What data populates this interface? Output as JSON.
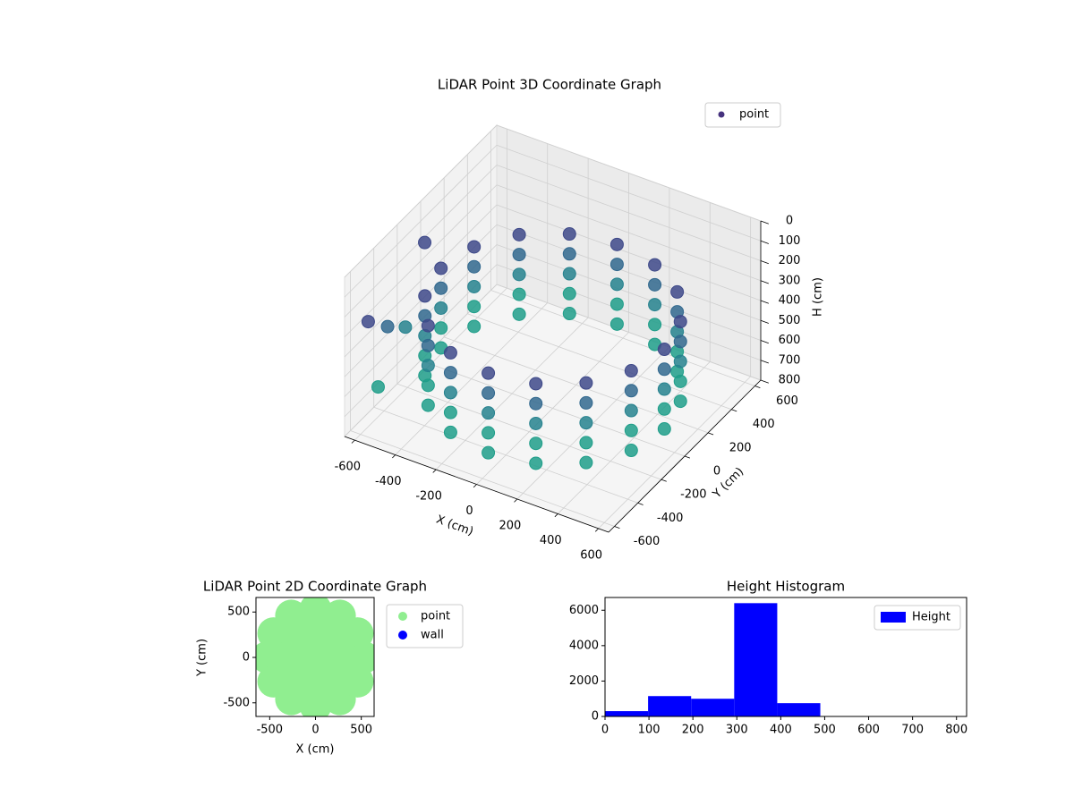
{
  "chart_data": [
    {
      "type": "scatter3d",
      "title": "LiDAR Point 3D Coordinate Graph",
      "xlabel": "X (cm)",
      "ylabel": "Y (cm)",
      "zlabel": "H (cm)",
      "colormap": "viridis",
      "legend": "upper right",
      "xlim": [
        -650,
        650
      ],
      "ylim": [
        -650,
        650
      ],
      "zlim": [
        0,
        800
      ],
      "z_inverted": true,
      "xticks": [
        -600,
        -400,
        -200,
        0,
        200,
        400,
        600
      ],
      "yticks": [
        -600,
        -400,
        -200,
        0,
        200,
        400,
        600
      ],
      "zticks": [
        0,
        100,
        200,
        300,
        400,
        500,
        600,
        700,
        800
      ],
      "series": [
        {
          "name": "point",
          "color": "#46327e",
          "x": [
            550,
            508,
            389,
            210,
            0,
            -210,
            -389,
            -508,
            -550,
            -508,
            -389,
            -210,
            0,
            210,
            389,
            508,
            550,
            508,
            389,
            210,
            0,
            -210,
            -389,
            -508,
            -550,
            -508,
            -389,
            -210,
            0,
            210,
            389,
            508,
            550,
            508,
            389,
            210,
            0,
            -210,
            -389,
            -508,
            -550,
            -508,
            -389,
            -210,
            0,
            210,
            389,
            508,
            550,
            508,
            389,
            210,
            0,
            -210,
            -389,
            -508,
            -550,
            -508,
            -389,
            -210,
            0,
            210,
            389,
            508,
            550,
            508,
            389,
            210,
            0,
            -210,
            -389,
            -508,
            -550,
            -508,
            -389,
            -210,
            0,
            210,
            389,
            508,
            -620,
            -640,
            -600,
            -630,
            -610
          ],
          "y": [
            0,
            210,
            389,
            508,
            550,
            508,
            389,
            210,
            0,
            -210,
            -389,
            -508,
            -550,
            -508,
            -389,
            -210,
            0,
            210,
            389,
            508,
            550,
            508,
            389,
            210,
            0,
            -210,
            -389,
            -508,
            -550,
            -508,
            -389,
            -210,
            0,
            210,
            389,
            508,
            550,
            508,
            389,
            210,
            0,
            -210,
            -389,
            -508,
            -550,
            -508,
            -389,
            -210,
            0,
            210,
            389,
            508,
            550,
            508,
            389,
            210,
            0,
            -210,
            -389,
            -508,
            -550,
            -508,
            -389,
            -210,
            0,
            210,
            389,
            508,
            550,
            508,
            389,
            210,
            0,
            -210,
            -389,
            -508,
            -550,
            -508,
            -389,
            -210,
            -500,
            -300,
            -450,
            0,
            -200
          ],
          "z": [
            300,
            300,
            300,
            300,
            300,
            300,
            300,
            300,
            300,
            300,
            300,
            300,
            300,
            300,
            300,
            300,
            400,
            400,
            400,
            400,
            400,
            400,
            400,
            400,
            400,
            400,
            400,
            400,
            400,
            400,
            400,
            400,
            500,
            500,
            500,
            500,
            500,
            500,
            500,
            500,
            500,
            500,
            500,
            500,
            500,
            500,
            500,
            500,
            600,
            600,
            600,
            600,
            600,
            600,
            600,
            600,
            600,
            600,
            600,
            600,
            600,
            600,
            600,
            600,
            700,
            700,
            700,
            700,
            700,
            700,
            700,
            700,
            700,
            700,
            700,
            700,
            700,
            700,
            700,
            700,
            300,
            450,
            650,
            200,
            500
          ]
        }
      ]
    },
    {
      "type": "scatter",
      "title": "LiDAR Point 2D Coordinate Graph",
      "xlabel": "X (cm)",
      "ylabel": "Y (cm)",
      "xlim": [
        -650,
        640
      ],
      "ylim": [
        -650,
        660
      ],
      "xticks": [
        -500,
        0,
        500
      ],
      "yticks": [
        -500,
        0,
        500
      ],
      "legend": "outside right",
      "series": [
        {
          "name": "point",
          "color": "#90ee90",
          "x": [
            530,
            459,
            265,
            0,
            -265,
            -459,
            -530,
            -459,
            -265,
            0,
            265,
            459,
            300,
            212,
            0,
            -212,
            -300,
            -212,
            0,
            212,
            0
          ],
          "y": [
            0,
            265,
            459,
            530,
            459,
            265,
            0,
            -265,
            -459,
            -530,
            -459,
            -265,
            0,
            212,
            300,
            212,
            0,
            -212,
            -300,
            -212,
            0
          ]
        },
        {
          "name": "wall",
          "color": "#0000ff",
          "x": [],
          "y": []
        }
      ]
    },
    {
      "type": "histogram",
      "title": "Height Histogram",
      "xlim": [
        0,
        823
      ],
      "ylim": [
        0,
        6720
      ],
      "xticks": [
        0,
        100,
        200,
        300,
        400,
        500,
        600,
        700,
        800
      ],
      "yticks": [
        0,
        2000,
        4000,
        6000
      ],
      "legend": "upper right",
      "series": [
        {
          "name": "Height",
          "color": "#0000ff",
          "bins": [
            0,
            98,
            196,
            294,
            392,
            490,
            588,
            686,
            784
          ],
          "values": [
            300,
            1150,
            1000,
            6400,
            750,
            0,
            0,
            0
          ]
        }
      ]
    }
  ]
}
